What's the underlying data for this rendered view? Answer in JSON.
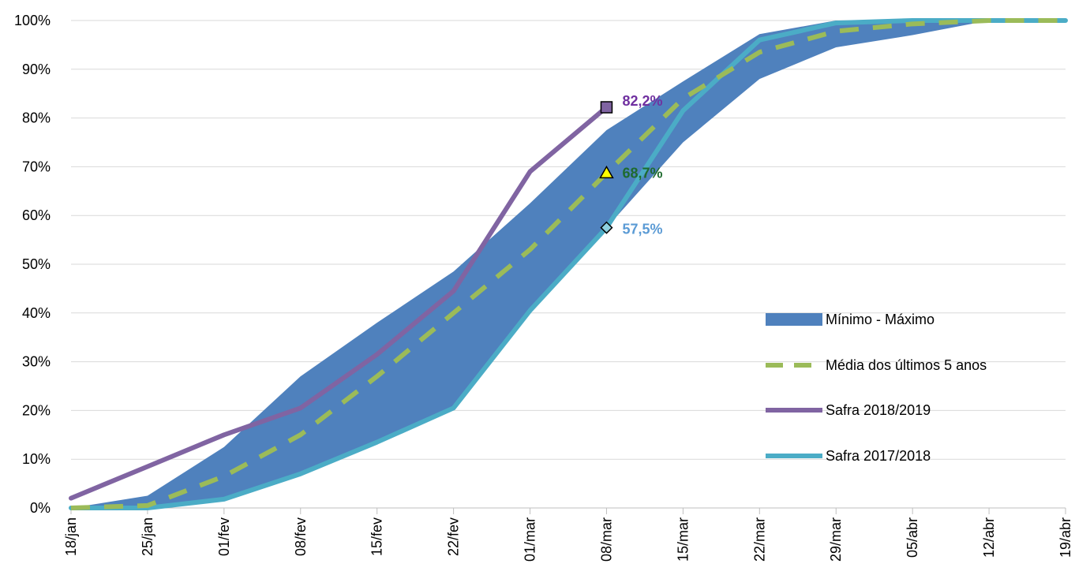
{
  "chart_data": {
    "type": "line",
    "categories": [
      "18/jan",
      "25/jan",
      "01/fev",
      "08/fev",
      "15/fev",
      "22/fev",
      "01/mar",
      "08/mar",
      "15/mar",
      "22/mar",
      "29/mar",
      "05/abr",
      "12/abr",
      "19/abr"
    ],
    "ylim": [
      0,
      1
    ],
    "yticks": [
      "0%",
      "10%",
      "20%",
      "30%",
      "40%",
      "50%",
      "60%",
      "70%",
      "80%",
      "90%",
      "100%"
    ],
    "grid": true,
    "legend_position": "right",
    "band": {
      "name": "Mínimo - Máximo",
      "color": "#4f81bd",
      "min": [
        0.0,
        0.0,
        0.018,
        0.07,
        0.135,
        0.205,
        0.405,
        0.575,
        0.75,
        0.88,
        0.945,
        0.97,
        1.0,
        1.0
      ],
      "max": [
        0.0,
        0.025,
        0.125,
        0.27,
        0.38,
        0.485,
        0.625,
        0.775,
        0.875,
        0.972,
        1.0,
        1.0,
        1.0,
        1.0
      ]
    },
    "series": [
      {
        "name": "Média dos últimos 5 anos",
        "style": "dashed",
        "color": "#9bbb59",
        "values": [
          0.0,
          0.005,
          0.065,
          0.15,
          0.27,
          0.4,
          0.53,
          0.687,
          0.84,
          0.935,
          0.978,
          0.993,
          1.0,
          1.0
        ]
      },
      {
        "name": "Safra 2018/2019",
        "style": "solid",
        "color": "#8064a2",
        "values": [
          0.02,
          0.085,
          0.15,
          0.205,
          0.315,
          0.445,
          0.69,
          0.822,
          null,
          null,
          null,
          null,
          null,
          null
        ]
      },
      {
        "name": "Safra 2017/2018",
        "style": "solid",
        "color": "#4bacc6",
        "values": [
          0.0,
          0.0,
          0.018,
          0.07,
          0.135,
          0.205,
          0.405,
          0.575,
          0.815,
          0.96,
          0.995,
          1.0,
          1.0,
          1.0
        ]
      }
    ],
    "annotations": [
      {
        "text": "82,2%",
        "category": "08/mar",
        "value": 0.822,
        "color": "#7030a0",
        "marker": "square",
        "marker_fill": "#8064a2"
      },
      {
        "text": "68,7%",
        "category": "08/mar",
        "value": 0.687,
        "color": "#1e6b2e",
        "marker": "triangle",
        "marker_fill": "#ffff00"
      },
      {
        "text": "57,5%",
        "category": "08/mar",
        "value": 0.575,
        "color": "#5b9bd5",
        "marker": "diamond",
        "marker_fill": "#8ed0e0"
      }
    ]
  }
}
